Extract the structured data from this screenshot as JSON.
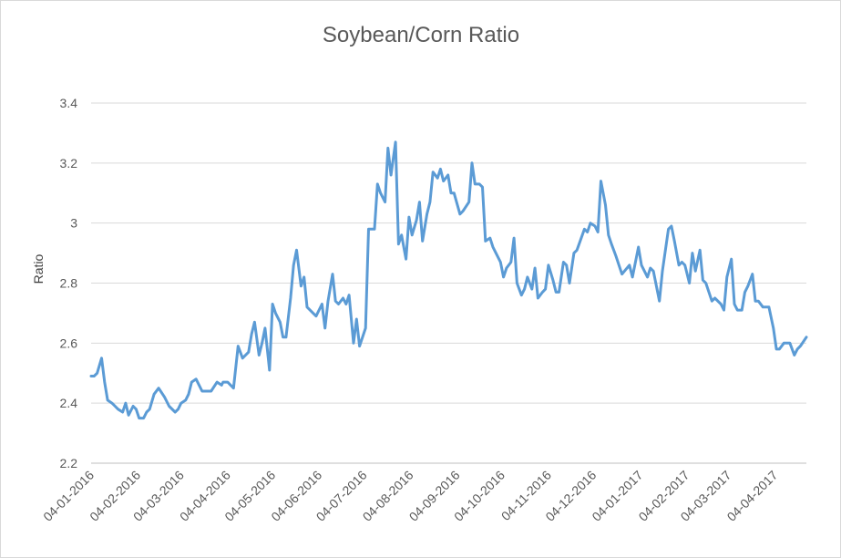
{
  "chart_data": {
    "type": "line",
    "title": "Soybean/Corn Ratio",
    "xlabel": "",
    "ylabel": "Ratio",
    "ylim": [
      2.2,
      3.4
    ],
    "yticks": [
      2.2,
      2.4,
      2.6,
      2.8,
      3,
      3.2,
      3.4
    ],
    "ytick_labels": [
      "2.2",
      "2.4",
      "2.6",
      "2.8",
      "3",
      "3.2",
      "3.4"
    ],
    "xlim": [
      "2016-01-04",
      "2017-04-25"
    ],
    "xticks": [
      "2016-01-04",
      "2016-02-04",
      "2016-03-04",
      "2016-04-04",
      "2016-05-04",
      "2016-06-04",
      "2016-07-04",
      "2016-08-04",
      "2016-09-04",
      "2016-10-04",
      "2016-11-04",
      "2016-12-04",
      "2017-01-04",
      "2017-02-04",
      "2017-03-04",
      "2017-04-04"
    ],
    "xtick_labels": [
      "04-01-2016",
      "04-02-2016",
      "04-03-2016",
      "04-04-2016",
      "04-05-2016",
      "04-06-2016",
      "04-07-2016",
      "04-08-2016",
      "04-09-2016",
      "04-10-2016",
      "04-11-2016",
      "04-12-2016",
      "04-01-2017",
      "04-02-2017",
      "04-03-2017",
      "04-04-2017"
    ],
    "grid": true,
    "legend": "none",
    "line_color": "#5b9bd5",
    "series": [
      {
        "x": [
          "2016-01-04",
          "2016-01-06",
          "2016-01-08",
          "2016-01-11",
          "2016-01-13",
          "2016-01-15",
          "2016-01-18",
          "2016-01-20",
          "2016-01-22",
          "2016-01-25",
          "2016-01-27",
          "2016-01-29",
          "2016-02-01",
          "2016-02-03",
          "2016-02-05",
          "2016-02-08",
          "2016-02-10",
          "2016-02-12",
          "2016-02-15",
          "2016-02-18",
          "2016-02-22",
          "2016-02-25",
          "2016-02-29",
          "2016-03-02",
          "2016-03-04",
          "2016-03-07",
          "2016-03-09",
          "2016-03-11",
          "2016-03-14",
          "2016-03-16",
          "2016-03-18",
          "2016-03-21",
          "2016-03-24",
          "2016-03-28",
          "2016-03-31",
          "2016-04-01",
          "2016-04-04",
          "2016-04-06",
          "2016-04-08",
          "2016-04-11",
          "2016-04-14",
          "2016-04-18",
          "2016-04-20",
          "2016-04-22",
          "2016-04-25",
          "2016-04-27",
          "2016-04-29",
          "2016-05-02",
          "2016-05-04",
          "2016-05-06",
          "2016-05-09",
          "2016-05-11",
          "2016-05-13",
          "2016-05-16",
          "2016-05-18",
          "2016-05-20",
          "2016-05-23",
          "2016-05-25",
          "2016-05-27",
          "2016-05-31",
          "2016-06-02",
          "2016-06-06",
          "2016-06-08",
          "2016-06-10",
          "2016-06-13",
          "2016-06-15",
          "2016-06-17",
          "2016-06-20",
          "2016-06-22",
          "2016-06-24",
          "2016-06-27",
          "2016-06-29",
          "2016-07-01",
          "2016-07-05",
          "2016-07-07",
          "2016-07-11",
          "2016-07-13",
          "2016-07-15",
          "2016-07-18",
          "2016-07-20",
          "2016-07-22",
          "2016-07-25",
          "2016-07-27",
          "2016-07-29",
          "2016-08-01",
          "2016-08-03",
          "2016-08-05",
          "2016-08-08",
          "2016-08-10",
          "2016-08-12",
          "2016-08-15",
          "2016-08-17",
          "2016-08-19",
          "2016-08-22",
          "2016-08-24",
          "2016-08-26",
          "2016-08-29",
          "2016-08-31",
          "2016-09-02",
          "2016-09-06",
          "2016-09-08",
          "2016-09-12",
          "2016-09-14",
          "2016-09-16",
          "2016-09-19",
          "2016-09-21",
          "2016-09-23",
          "2016-09-26",
          "2016-09-28",
          "2016-09-30",
          "2016-10-03",
          "2016-10-05",
          "2016-10-07",
          "2016-10-10",
          "2016-10-12",
          "2016-10-14",
          "2016-10-17",
          "2016-10-19",
          "2016-10-21",
          "2016-10-24",
          "2016-10-26",
          "2016-10-28",
          "2016-10-31",
          "2016-11-02",
          "2016-11-04",
          "2016-11-07",
          "2016-11-09",
          "2016-11-11",
          "2016-11-14",
          "2016-11-16",
          "2016-11-18",
          "2016-11-21",
          "2016-11-23",
          "2016-11-28",
          "2016-11-30",
          "2016-12-02",
          "2016-12-05",
          "2016-12-07",
          "2016-12-09",
          "2016-12-12",
          "2016-12-14",
          "2016-12-16",
          "2016-12-19",
          "2016-12-21",
          "2016-12-23",
          "2016-12-28",
          "2016-12-30",
          "2017-01-03",
          "2017-01-05",
          "2017-01-09",
          "2017-01-11",
          "2017-01-13",
          "2017-01-17",
          "2017-01-19",
          "2017-01-23",
          "2017-01-25",
          "2017-01-27",
          "2017-01-30",
          "2017-02-01",
          "2017-02-03",
          "2017-02-06",
          "2017-02-08",
          "2017-02-10",
          "2017-02-13",
          "2017-02-15",
          "2017-02-17",
          "2017-02-21",
          "2017-02-23",
          "2017-02-27",
          "2017-03-01",
          "2017-03-03",
          "2017-03-06",
          "2017-03-08",
          "2017-03-10",
          "2017-03-13",
          "2017-03-15",
          "2017-03-17",
          "2017-03-20",
          "2017-03-22",
          "2017-03-24",
          "2017-03-27",
          "2017-03-29",
          "2017-03-31",
          "2017-04-03",
          "2017-04-05",
          "2017-04-07",
          "2017-04-10",
          "2017-04-12",
          "2017-04-14",
          "2017-04-17",
          "2017-04-19",
          "2017-04-21",
          "2017-04-25"
        ],
        "values": [
          2.49,
          2.49,
          2.5,
          2.55,
          2.47,
          2.41,
          2.4,
          2.39,
          2.38,
          2.37,
          2.4,
          2.36,
          2.39,
          2.38,
          2.35,
          2.35,
          2.37,
          2.38,
          2.43,
          2.45,
          2.42,
          2.39,
          2.37,
          2.38,
          2.4,
          2.41,
          2.43,
          2.47,
          2.48,
          2.46,
          2.44,
          2.44,
          2.44,
          2.47,
          2.46,
          2.47,
          2.47,
          2.46,
          2.45,
          2.59,
          2.55,
          2.57,
          2.63,
          2.67,
          2.56,
          2.6,
          2.65,
          2.51,
          2.73,
          2.7,
          2.67,
          2.62,
          2.62,
          2.75,
          2.86,
          2.91,
          2.79,
          2.82,
          2.72,
          2.7,
          2.69,
          2.73,
          2.65,
          2.74,
          2.83,
          2.74,
          2.73,
          2.75,
          2.73,
          2.76,
          2.6,
          2.68,
          2.59,
          2.65,
          2.98,
          2.98,
          3.13,
          3.1,
          3.07,
          3.25,
          3.16,
          3.27,
          2.93,
          2.96,
          2.88,
          3.02,
          2.96,
          3.01,
          3.07,
          2.94,
          3.03,
          3.07,
          3.17,
          3.15,
          3.18,
          3.14,
          3.16,
          3.1,
          3.1,
          3.03,
          3.04,
          3.07,
          3.2,
          3.13,
          3.13,
          3.12,
          2.94,
          2.95,
          2.92,
          2.9,
          2.87,
          2.82,
          2.85,
          2.87,
          2.95,
          2.8,
          2.76,
          2.78,
          2.82,
          2.78,
          2.85,
          2.75,
          2.77,
          2.78,
          2.86,
          2.81,
          2.77,
          2.77,
          2.87,
          2.86,
          2.8,
          2.9,
          2.91,
          2.98,
          2.97,
          3.0,
          2.99,
          2.97,
          3.14,
          3.06,
          2.96,
          2.93,
          2.89,
          2.86,
          2.83,
          2.86,
          2.82,
          2.92,
          2.86,
          2.82,
          2.85,
          2.84,
          2.74,
          2.84,
          2.98,
          2.99,
          2.94,
          2.86,
          2.87,
          2.86,
          2.8,
          2.9,
          2.84,
          2.91,
          2.81,
          2.8,
          2.74,
          2.75,
          2.73,
          2.71,
          2.82,
          2.88,
          2.73,
          2.71,
          2.71,
          2.77,
          2.79,
          2.83,
          2.74,
          2.74,
          2.72,
          2.72,
          2.72,
          2.65,
          2.58,
          2.58,
          2.6,
          2.6,
          2.6,
          2.56,
          2.58,
          2.59,
          2.62
        ]
      }
    ]
  }
}
